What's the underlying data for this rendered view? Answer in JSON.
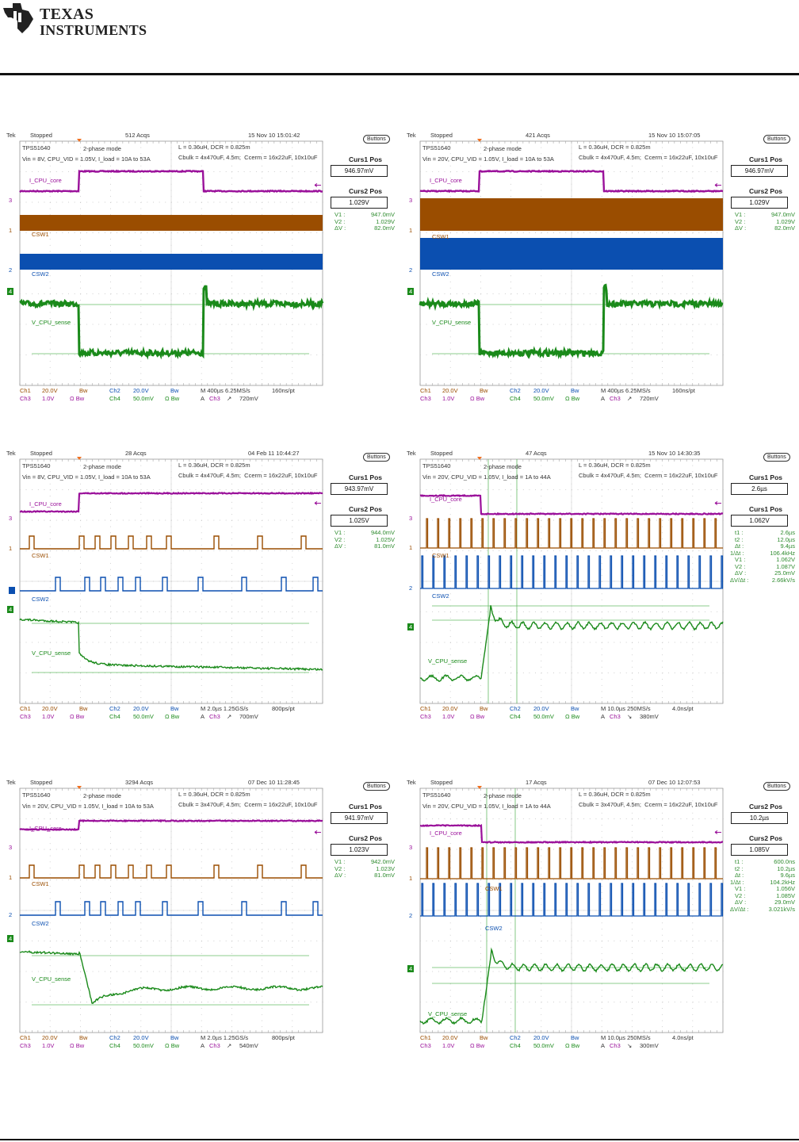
{
  "header": {
    "logo_text_line1": "Texas",
    "logo_text_line2": "Instruments"
  },
  "colors": {
    "ch1": "#9a4d00",
    "ch2": "#0b4fb0",
    "ch3": "#9a109a",
    "ch4": "#1a8a1a",
    "grid": "#b8b8b8",
    "cursor": "#66bb66",
    "readout": "#2e8b2e"
  },
  "common": {
    "tek": "Tek",
    "buttons": "Buttons",
    "device": "TPS51640",
    "mode": "2-phase mode",
    "inductor": "L = 0.36uH, DCR = 0.825m",
    "labels": {
      "ch3": "I_CPU_core",
      "ch1": "CSW1",
      "ch2": "CSW2",
      "ch4": "V_CPU_sense"
    },
    "markers": {
      "ch3": "3",
      "ch1": "1",
      "ch2": "2",
      "ch4": "4"
    },
    "footer": {
      "ch1": "Ch1",
      "ch1_scale": "20.0V",
      "ch1_bw": "Bw",
      "ch2": "Ch2",
      "ch2_scale": "20.0V",
      "ch2_bw": "Bw",
      "ch3": "Ch3",
      "ch3_scale": "1.0V",
      "ch3_bw": "Ω Bw",
      "ch4": "Ch4",
      "ch4_scale": "50.0mV",
      "ch4_bw": "Ω Bw",
      "trig_prefix": "A",
      "trig_src": "Ch3"
    }
  },
  "scopes": [
    {
      "status": "Stopped",
      "acqs": "512 Acqs",
      "datetime": "15 Nov 10 15:01:42",
      "conditions": "Vin = 8V, CPU_VID = 1.05V, I_load = 10A to 53A",
      "caps": "Cbulk = 4x470uF, 4.5m;  Ccerm = 16x22uF, 10x10uF",
      "curs_a_title": "Curs1 Pos",
      "curs_a_value": "946.97mV",
      "curs_b_title": "Curs2 Pos",
      "curs_b_value": "1.029V",
      "readouts": [
        {
          "k": "V1 :",
          "v": "947.0mV"
        },
        {
          "k": "V2 :",
          "v": "1.029V"
        },
        {
          "k": "ΔV :",
          "v": "82.0mV"
        }
      ],
      "timebase": "M 400µs 6.25MS/s",
      "record": "160ns/pt",
      "trig_slope": "↗",
      "trig_level": "720mV"
    },
    {
      "status": "Stopped",
      "acqs": "421 Acqs",
      "datetime": "15 Nov 10 15:07:05",
      "conditions": "Vin = 20V, CPU_VID = 1.05V, I_load = 10A to 53A",
      "caps": "Cbulk = 4x470uF, 4.5m;  Ccerm = 16x22uF, 10x10uF",
      "curs_a_title": "Curs1 Pos",
      "curs_a_value": "946.97mV",
      "curs_b_title": "Curs2 Pos",
      "curs_b_value": "1.029V",
      "readouts": [
        {
          "k": "V1 :",
          "v": "947.0mV"
        },
        {
          "k": "V2 :",
          "v": "1.029V"
        },
        {
          "k": "ΔV :",
          "v": "82.0mV"
        }
      ],
      "timebase": "M 400µs 6.25MS/s",
      "record": "160ns/pt",
      "trig_slope": "↗",
      "trig_level": "720mV"
    },
    {
      "status": "Stopped",
      "acqs": "28 Acqs",
      "datetime": "04 Feb 11 10:44:27",
      "conditions": "Vin = 8V, CPU_VID = 1.05V, I_load = 10A to 53A",
      "caps": "Cbulk = 4x470uF, 4.5m;  Ccerm = 16x22uF, 10x10uF",
      "curs_a_title": "Curs1 Pos",
      "curs_a_value": "943.97mV",
      "curs_b_title": "Curs2 Pos",
      "curs_b_value": "1.025V",
      "readouts": [
        {
          "k": "V1 :",
          "v": "944.0mV"
        },
        {
          "k": "V2 :",
          "v": "1.025V"
        },
        {
          "k": "ΔV :",
          "v": "81.0mV"
        }
      ],
      "timebase": "M 2.0µs 1.25GS/s",
      "record": "800ps/pt",
      "trig_slope": "↗",
      "trig_level": "700mV"
    },
    {
      "status": "Stopped",
      "acqs": "47 Acqs",
      "datetime": "15 Nov 10 14:30:35",
      "conditions": "Vin = 20V, CPU_VID = 1.05V, I_load = 1A to 44A",
      "caps": "Cbulk = 4x470uF, 4.5m;  Ccerm = 16x22uF, 10x10uF",
      "curs_a_title": "Curs1 Pos",
      "curs_a_value": "2.6µs",
      "curs_b_title": "Curs1 Pos",
      "curs_b_value": "1.062V",
      "readouts": [
        {
          "k": "t1 :",
          "v": "2.6µs"
        },
        {
          "k": "t2 :",
          "v": "12.0µs"
        },
        {
          "k": "Δt :",
          "v": "9.4µs"
        },
        {
          "k": "1/Δt :",
          "v": "106.4kHz"
        },
        {
          "k": "V1 :",
          "v": "1.062V"
        },
        {
          "k": "V2 :",
          "v": "1.087V"
        },
        {
          "k": "ΔV :",
          "v": "25.0mV"
        },
        {
          "k": "ΔV/Δt :",
          "v": "2.66kV/s"
        }
      ],
      "timebase": "M 10.0µs 250MS/s",
      "record": "4.0ns/pt",
      "trig_slope": "↘",
      "trig_level": "380mV"
    },
    {
      "status": "Stopped",
      "acqs": "3294 Acqs",
      "datetime": "07 Dec 10 11:28:45",
      "conditions": "Vin = 20V, CPU_VID = 1.05V, I_load = 10A to 53A",
      "caps": "Cbulk = 3x470uF, 4.5m;  Ccerm = 16x22uF, 10x10uF",
      "curs_a_title": "Curs1 Pos",
      "curs_a_value": "941.97mV",
      "curs_b_title": "Curs2 Pos",
      "curs_b_value": "1.023V",
      "readouts": [
        {
          "k": "V1 :",
          "v": "942.0mV"
        },
        {
          "k": "V2 :",
          "v": "1.023V"
        },
        {
          "k": "ΔV :",
          "v": "81.0mV"
        }
      ],
      "timebase": "M 2.0µs 1.25GS/s",
      "record": "800ps/pt",
      "trig_slope": "↗",
      "trig_level": "540mV"
    },
    {
      "status": "Stopped",
      "acqs": "17 Acqs",
      "datetime": "07 Dec 10 12:07:53",
      "conditions": "Vin = 20V, CPU_VID = 1.05V, I_load = 1A to 44A",
      "caps": "Cbulk = 3x470uF, 4.5m;  Ccerm = 16x22uF, 10x10uF",
      "curs_a_title": "Curs2 Pos",
      "curs_a_value": "10.2µs",
      "curs_b_title": "Curs2 Pos",
      "curs_b_value": "1.085V",
      "readouts": [
        {
          "k": "t1 :",
          "v": "600.0ns"
        },
        {
          "k": "t2 :",
          "v": "10.2µs"
        },
        {
          "k": "Δt :",
          "v": "9.6µs"
        },
        {
          "k": "1/Δt :",
          "v": "104.2kHz"
        },
        {
          "k": "V1 :",
          "v": "1.056V"
        },
        {
          "k": "V2 :",
          "v": "1.085V"
        },
        {
          "k": "ΔV :",
          "v": "29.0mV"
        },
        {
          "k": "ΔV/Δt :",
          "v": "3.021kV/s"
        }
      ],
      "timebase": "M 10.0µs 250MS/s",
      "record": "4.0ns/pt",
      "trig_slope": "↘",
      "trig_level": "300mV"
    }
  ]
}
